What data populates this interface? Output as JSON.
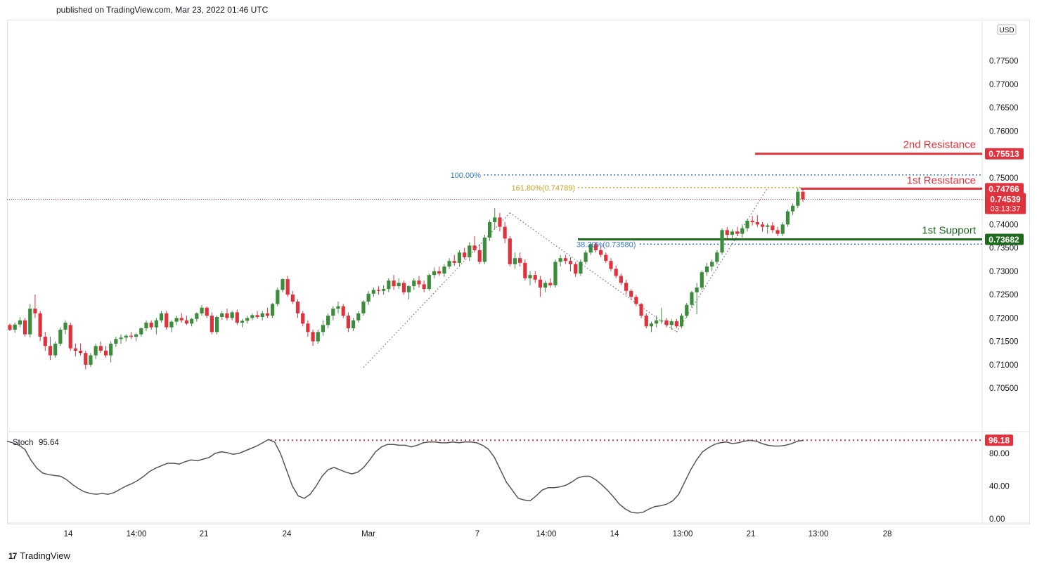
{
  "header": {
    "published": "published on TradingView.com, Mar 23, 2022 01:46 UTC"
  },
  "footer": {
    "brand": "TradingView",
    "logo_glyph": "17"
  },
  "colors": {
    "bull": "#3b8d3b",
    "bear": "#e0323c",
    "resistance": "#e0323c",
    "support": "#1e6b1e",
    "fib_blue": "#2f78d1",
    "fib_gold": "#d0a020",
    "stoch": "#555555"
  },
  "chart_data": {
    "type": "candlestick",
    "currency": "USD",
    "y_ticks": [
      "0.77500",
      "0.77000",
      "0.76500",
      "0.76000",
      "0.75500",
      "0.75000",
      "0.74500",
      "0.74000",
      "0.73500",
      "0.73000",
      "0.72500",
      "0.72000",
      "0.71500",
      "0.71000",
      "0.70500"
    ],
    "ylim": [
      0.7005,
      0.7793
    ],
    "x_ticks": [
      "14",
      "14:00",
      "21",
      "24",
      "Mar",
      "7",
      "14:00",
      "14",
      "13:00",
      "21",
      "13:00",
      "28"
    ],
    "levels": [
      {
        "label": "2nd Resistance",
        "value": "0.75513",
        "kind": "resistance"
      },
      {
        "label": "1st Resistance",
        "value": "0.74766",
        "kind": "resistance"
      },
      {
        "label": "1st Support",
        "value": "0.73682",
        "kind": "support"
      }
    ],
    "fib": [
      {
        "label": "100.00%",
        "value": 0.7506
      },
      {
        "label": "161.80%(0.74789)",
        "value": 0.74789
      },
      {
        "label": "38.20%(0.73580)",
        "value": 0.7358
      }
    ],
    "last_price": {
      "value": "0.74539",
      "countdown": "03:13:37"
    },
    "pattern": [
      [
        0.7094,
        "24"
      ],
      [
        0.7425,
        "7"
      ],
      [
        0.717,
        "14"
      ],
      [
        0.7478,
        "13:00"
      ]
    ],
    "candles": [
      [
        0.7185,
        0.7188,
        0.7172,
        0.7175
      ],
      [
        0.7175,
        0.719,
        0.7168,
        0.7186
      ],
      [
        0.7186,
        0.7202,
        0.718,
        0.7195
      ],
      [
        0.7195,
        0.72,
        0.716,
        0.7165
      ],
      [
        0.7165,
        0.723,
        0.7158,
        0.722
      ],
      [
        0.722,
        0.725,
        0.72,
        0.721
      ],
      [
        0.721,
        0.7215,
        0.715,
        0.716
      ],
      [
        0.716,
        0.717,
        0.713,
        0.714
      ],
      [
        0.714,
        0.716,
        0.711,
        0.712
      ],
      [
        0.712,
        0.715,
        0.7115,
        0.7145
      ],
      [
        0.7145,
        0.718,
        0.714,
        0.7175
      ],
      [
        0.7175,
        0.7195,
        0.7165,
        0.719
      ],
      [
        0.7185,
        0.719,
        0.713,
        0.7135
      ],
      [
        0.7135,
        0.7145,
        0.7118,
        0.713
      ],
      [
        0.713,
        0.7145,
        0.712,
        0.7125
      ],
      [
        0.7125,
        0.713,
        0.709,
        0.71
      ],
      [
        0.71,
        0.7125,
        0.7095,
        0.712
      ],
      [
        0.712,
        0.7145,
        0.7112,
        0.714
      ],
      [
        0.714,
        0.715,
        0.7125,
        0.713
      ],
      [
        0.713,
        0.714,
        0.7115,
        0.712
      ],
      [
        0.712,
        0.715,
        0.7105,
        0.7145
      ],
      [
        0.7145,
        0.716,
        0.7138,
        0.7155
      ],
      [
        0.7155,
        0.7165,
        0.7145,
        0.7158
      ],
      [
        0.7158,
        0.7165,
        0.715,
        0.7162
      ],
      [
        0.7162,
        0.717,
        0.7155,
        0.716
      ],
      [
        0.716,
        0.7168,
        0.715,
        0.7165
      ],
      [
        0.7165,
        0.718,
        0.716,
        0.7178
      ],
      [
        0.7178,
        0.7195,
        0.7172,
        0.719
      ],
      [
        0.719,
        0.7195,
        0.7175,
        0.718
      ],
      [
        0.718,
        0.72,
        0.7165,
        0.7195
      ],
      [
        0.7195,
        0.7215,
        0.719,
        0.721
      ],
      [
        0.721,
        0.7215,
        0.7175,
        0.718
      ],
      [
        0.718,
        0.7195,
        0.717,
        0.7192
      ],
      [
        0.7192,
        0.7205,
        0.7185,
        0.72
      ],
      [
        0.72,
        0.721,
        0.719,
        0.7195
      ],
      [
        0.7195,
        0.7205,
        0.7185,
        0.7188
      ],
      [
        0.7188,
        0.72,
        0.7182,
        0.7198
      ],
      [
        0.7198,
        0.7212,
        0.7192,
        0.721
      ],
      [
        0.721,
        0.7228,
        0.7205,
        0.7222
      ],
      [
        0.7222,
        0.7225,
        0.72,
        0.7205
      ],
      [
        0.7205,
        0.7212,
        0.7165,
        0.717
      ],
      [
        0.717,
        0.7205,
        0.7165,
        0.7202
      ],
      [
        0.7202,
        0.7215,
        0.7196,
        0.721
      ],
      [
        0.721,
        0.722,
        0.7195,
        0.72
      ],
      [
        0.72,
        0.7215,
        0.7195,
        0.7212
      ],
      [
        0.7212,
        0.7218,
        0.7185,
        0.719
      ],
      [
        0.719,
        0.7198,
        0.718,
        0.7194
      ],
      [
        0.7194,
        0.7205,
        0.7188,
        0.72
      ],
      [
        0.72,
        0.721,
        0.7195,
        0.7206
      ],
      [
        0.7206,
        0.7215,
        0.7198,
        0.7202
      ],
      [
        0.7202,
        0.7215,
        0.7195,
        0.721
      ],
      [
        0.721,
        0.7222,
        0.72,
        0.7205
      ],
      [
        0.7205,
        0.7232,
        0.72,
        0.723
      ],
      [
        0.723,
        0.7265,
        0.7225,
        0.726
      ],
      [
        0.726,
        0.7285,
        0.7255,
        0.7283
      ],
      [
        0.7283,
        0.729,
        0.7245,
        0.725
      ],
      [
        0.725,
        0.7258,
        0.723,
        0.7235
      ],
      [
        0.7235,
        0.724,
        0.72,
        0.721
      ],
      [
        0.721,
        0.7215,
        0.7182,
        0.7188
      ],
      [
        0.7188,
        0.7195,
        0.716,
        0.717
      ],
      [
        0.717,
        0.7175,
        0.714,
        0.715
      ],
      [
        0.715,
        0.7175,
        0.7145,
        0.717
      ],
      [
        0.717,
        0.7195,
        0.7162,
        0.7185
      ],
      [
        0.7185,
        0.721,
        0.7178,
        0.7205
      ],
      [
        0.7205,
        0.7225,
        0.7195,
        0.722
      ],
      [
        0.722,
        0.7235,
        0.721,
        0.7225
      ],
      [
        0.7225,
        0.723,
        0.72,
        0.7205
      ],
      [
        0.7205,
        0.7212,
        0.717,
        0.7178
      ],
      [
        0.7178,
        0.72,
        0.7172,
        0.7195
      ],
      [
        0.7195,
        0.7215,
        0.719,
        0.721
      ],
      [
        0.721,
        0.7238,
        0.7205,
        0.7235
      ],
      [
        0.7235,
        0.7258,
        0.7228,
        0.7252
      ],
      [
        0.7252,
        0.7265,
        0.7245,
        0.726
      ],
      [
        0.726,
        0.7268,
        0.725,
        0.7258
      ],
      [
        0.7258,
        0.727,
        0.725,
        0.7262
      ],
      [
        0.7262,
        0.7285,
        0.7255,
        0.728
      ],
      [
        0.728,
        0.7292,
        0.726,
        0.7268
      ],
      [
        0.7268,
        0.7285,
        0.7262,
        0.7275
      ],
      [
        0.7275,
        0.728,
        0.725,
        0.7255
      ],
      [
        0.7255,
        0.727,
        0.724,
        0.7268
      ],
      [
        0.7268,
        0.7285,
        0.726,
        0.728
      ],
      [
        0.728,
        0.729,
        0.7265,
        0.7272
      ],
      [
        0.7272,
        0.728,
        0.7255,
        0.7262
      ],
      [
        0.7262,
        0.7295,
        0.7258,
        0.7292
      ],
      [
        0.7292,
        0.7308,
        0.7285,
        0.73
      ],
      [
        0.73,
        0.731,
        0.729,
        0.7295
      ],
      [
        0.7295,
        0.7315,
        0.7288,
        0.731
      ],
      [
        0.731,
        0.7328,
        0.7305,
        0.7322
      ],
      [
        0.7322,
        0.7335,
        0.7312,
        0.7318
      ],
      [
        0.7318,
        0.7345,
        0.7312,
        0.734
      ],
      [
        0.734,
        0.735,
        0.7325,
        0.733
      ],
      [
        0.733,
        0.7362,
        0.7322,
        0.7355
      ],
      [
        0.7355,
        0.7375,
        0.734,
        0.7345
      ],
      [
        0.7345,
        0.7358,
        0.7315,
        0.732
      ],
      [
        0.732,
        0.7378,
        0.7315,
        0.7372
      ],
      [
        0.7372,
        0.741,
        0.7365,
        0.7405
      ],
      [
        0.7405,
        0.7435,
        0.739,
        0.7415
      ],
      [
        0.7415,
        0.7425,
        0.7385,
        0.7395
      ],
      [
        0.7395,
        0.7405,
        0.736,
        0.737
      ],
      [
        0.737,
        0.7375,
        0.731,
        0.7315
      ],
      [
        0.7315,
        0.734,
        0.7305,
        0.7328
      ],
      [
        0.7328,
        0.734,
        0.731,
        0.7318
      ],
      [
        0.7318,
        0.7325,
        0.728,
        0.7285
      ],
      [
        0.7285,
        0.73,
        0.727,
        0.7292
      ],
      [
        0.7292,
        0.73,
        0.7275,
        0.7282
      ],
      [
        0.7282,
        0.729,
        0.7245,
        0.7265
      ],
      [
        0.7265,
        0.728,
        0.7255,
        0.7275
      ],
      [
        0.7275,
        0.7285,
        0.7265,
        0.727
      ],
      [
        0.727,
        0.7325,
        0.7265,
        0.732
      ],
      [
        0.732,
        0.7335,
        0.731,
        0.7328
      ],
      [
        0.7328,
        0.7335,
        0.7315,
        0.7322
      ],
      [
        0.7322,
        0.733,
        0.73,
        0.7315
      ],
      [
        0.7315,
        0.732,
        0.7288,
        0.7295
      ],
      [
        0.7295,
        0.7325,
        0.729,
        0.732
      ],
      [
        0.732,
        0.7345,
        0.7315,
        0.734
      ],
      [
        0.734,
        0.7362,
        0.7335,
        0.7358
      ],
      [
        0.7358,
        0.7362,
        0.734,
        0.7345
      ],
      [
        0.7345,
        0.7355,
        0.733,
        0.7335
      ],
      [
        0.7335,
        0.734,
        0.7318,
        0.7322
      ],
      [
        0.7322,
        0.7328,
        0.73,
        0.7305
      ],
      [
        0.7305,
        0.7312,
        0.7285,
        0.729
      ],
      [
        0.729,
        0.7295,
        0.727,
        0.7275
      ],
      [
        0.7275,
        0.7282,
        0.725,
        0.7258
      ],
      [
        0.7258,
        0.7262,
        0.7238,
        0.7245
      ],
      [
        0.7245,
        0.725,
        0.7225,
        0.723
      ],
      [
        0.723,
        0.7232,
        0.72,
        0.7205
      ],
      [
        0.7205,
        0.721,
        0.7178,
        0.7182
      ],
      [
        0.7182,
        0.7192,
        0.717,
        0.7188
      ],
      [
        0.7188,
        0.7205,
        0.718,
        0.7195
      ],
      [
        0.7195,
        0.7222,
        0.7188,
        0.7195
      ],
      [
        0.7195,
        0.72,
        0.718,
        0.7185
      ],
      [
        0.7185,
        0.7198,
        0.7175,
        0.7193
      ],
      [
        0.7193,
        0.7198,
        0.7178,
        0.7182
      ],
      [
        0.7182,
        0.721,
        0.7178,
        0.7205
      ],
      [
        0.7205,
        0.7232,
        0.72,
        0.7228
      ],
      [
        0.7228,
        0.7258,
        0.7222,
        0.7255
      ],
      [
        0.7255,
        0.7275,
        0.7208,
        0.7265
      ],
      [
        0.7265,
        0.7302,
        0.726,
        0.7298
      ],
      [
        0.7298,
        0.7318,
        0.729,
        0.731
      ],
      [
        0.731,
        0.7325,
        0.73,
        0.732
      ],
      [
        0.732,
        0.7345,
        0.7315,
        0.734
      ],
      [
        0.734,
        0.7392,
        0.7335,
        0.7388
      ],
      [
        0.7388,
        0.7395,
        0.737,
        0.7378
      ],
      [
        0.7378,
        0.739,
        0.737,
        0.7385
      ],
      [
        0.7385,
        0.7395,
        0.7375,
        0.738
      ],
      [
        0.738,
        0.74,
        0.7372,
        0.7392
      ],
      [
        0.7392,
        0.7412,
        0.7385,
        0.7408
      ],
      [
        0.7408,
        0.7418,
        0.7398,
        0.7405
      ],
      [
        0.7405,
        0.742,
        0.7395,
        0.74
      ],
      [
        0.74,
        0.7405,
        0.7385,
        0.7395
      ],
      [
        0.7395,
        0.7402,
        0.738,
        0.7398
      ],
      [
        0.7398,
        0.7405,
        0.7382,
        0.7388
      ],
      [
        0.7388,
        0.7395,
        0.7375,
        0.738
      ],
      [
        0.738,
        0.7405,
        0.7375,
        0.74
      ],
      [
        0.74,
        0.7432,
        0.7395,
        0.7428
      ],
      [
        0.7428,
        0.7445,
        0.742,
        0.744
      ],
      [
        0.744,
        0.7478,
        0.7435,
        0.747
      ],
      [
        0.747,
        0.7475,
        0.7448,
        0.7454
      ]
    ],
    "stoch": {
      "label": "Stoch",
      "value": "95.64",
      "last": "96.18",
      "y_ticks": [
        "80.00",
        "40.00",
        "0.00"
      ],
      "ylim": [
        -2,
        104
      ],
      "series": [
        95,
        93,
        90,
        85,
        72,
        62,
        56,
        54,
        53,
        52,
        48,
        42,
        37,
        33,
        31,
        30,
        31,
        30,
        32,
        36,
        40,
        43,
        47,
        52,
        58,
        62,
        65,
        68,
        68,
        67,
        70,
        72,
        71,
        73,
        75,
        80,
        82,
        81,
        79,
        80,
        83,
        86,
        89,
        93,
        97,
        94,
        80,
        60,
        40,
        28,
        25,
        30,
        40,
        52,
        60,
        63,
        60,
        57,
        55,
        57,
        63,
        72,
        82,
        88,
        91,
        91,
        90,
        90,
        88,
        90,
        93,
        94,
        94,
        93,
        93,
        94,
        93,
        94,
        94,
        93,
        90,
        85,
        75,
        60,
        45,
        35,
        25,
        23,
        22,
        28,
        35,
        38,
        38,
        39,
        41,
        45,
        50,
        52,
        52,
        48,
        42,
        35,
        27,
        18,
        12,
        8,
        7,
        8,
        12,
        15,
        16,
        18,
        22,
        30,
        45,
        60,
        72,
        82,
        87,
        91,
        93,
        94,
        92,
        93,
        95,
        96,
        95,
        92,
        90,
        89,
        89,
        90,
        92,
        95,
        96
      ]
    }
  }
}
